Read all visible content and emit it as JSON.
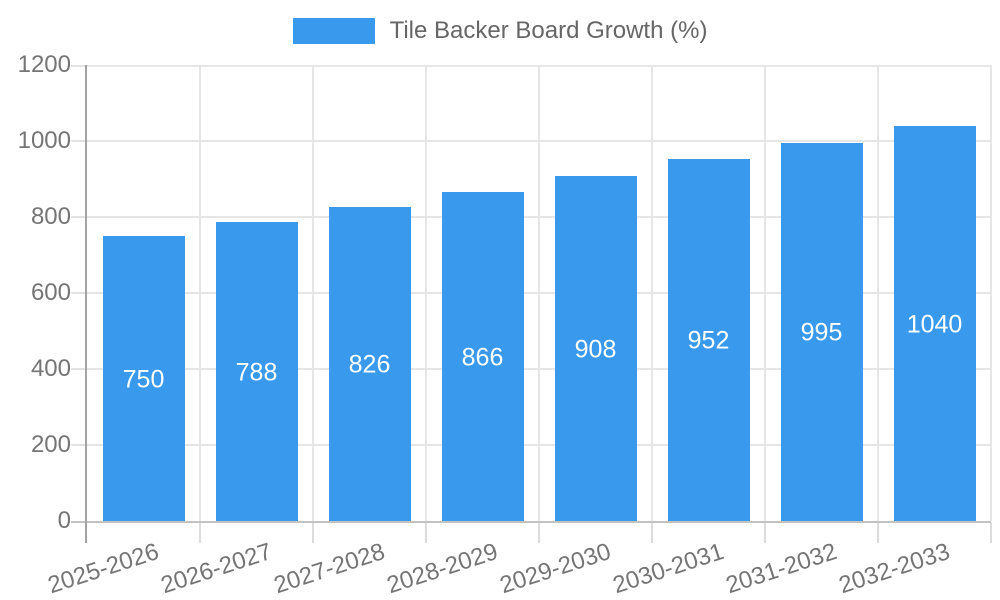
{
  "chart_data": {
    "type": "bar",
    "title": "",
    "legend": {
      "label": "Tile Backer Board Growth (%)",
      "position": "top-center"
    },
    "categories": [
      "2025-2026",
      "2026-2027",
      "2027-2028",
      "2028-2029",
      "2029-2030",
      "2030-2031",
      "2031-2032",
      "2032-2033"
    ],
    "series": [
      {
        "name": "Tile Backer Board Growth (%)",
        "values": [
          750,
          788,
          826,
          866,
          908,
          952,
          995,
          1040
        ]
      }
    ],
    "value_labels": [
      750,
      788,
      826,
      866,
      908,
      952,
      995,
      1040
    ],
    "value_label_position": "inside-center",
    "xlabel": "",
    "ylabel": "",
    "ylim": [
      0,
      1200
    ],
    "yticks": [
      0,
      200,
      400,
      600,
      800,
      1000,
      1200
    ],
    "grid": "both",
    "x_tick_label_rotation_deg": -18,
    "colors": {
      "bar": "#3999ED",
      "bar_value_text": "#FFFFFF",
      "axis_text": "#757575",
      "legend_text": "#666666",
      "gridline": "#E6E6E6",
      "y_axis_line": "#A3A3A3",
      "x_axis_line": "#C2C2C2",
      "background": "#FFFFFF"
    }
  }
}
